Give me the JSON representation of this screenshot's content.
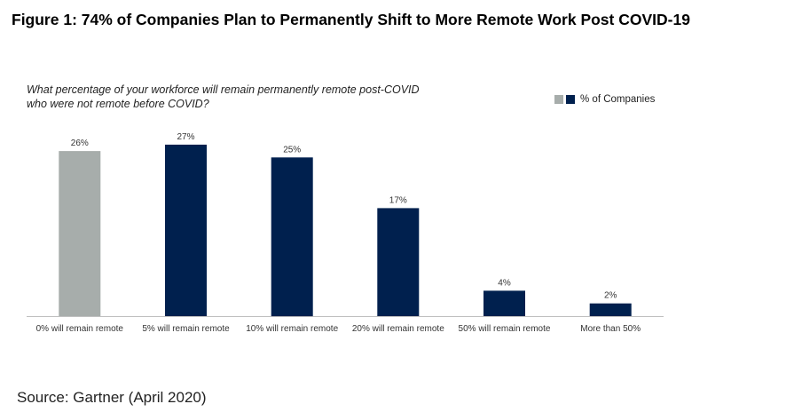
{
  "figure_title": "Figure 1: 74% of Companies Plan to Permanently Shift to More Remote Work Post COVID-19",
  "source": "Source: Gartner (April 2020)",
  "colors": {
    "highlight": "#a7adab",
    "primary": "#00204e",
    "axis": "#bfbfbf"
  },
  "chart_data": {
    "type": "bar",
    "title": "What percentage of your workforce will remain permanently remote post-COVID who were not remote before COVID?",
    "title_lines": [
      "What percentage of your workforce will remain permanently remote post-COVID",
      "who were not remote before COVID?"
    ],
    "legend": {
      "label": "% of Companies",
      "position": "top-right"
    },
    "categories": [
      "0% will remain remote",
      "5% will remain remote",
      "10% will remain remote",
      "20% will remain remote",
      "50% will remain remote",
      "More than 50%"
    ],
    "series": [
      {
        "name": "% of Companies",
        "values": [
          26,
          27,
          25,
          17,
          4,
          2
        ]
      }
    ],
    "data_labels": [
      "26%",
      "27%",
      "25%",
      "17%",
      "4%",
      "2%"
    ],
    "bar_colors": [
      "#a7adab",
      "#00204e",
      "#00204e",
      "#00204e",
      "#00204e",
      "#00204e"
    ],
    "ylim": [
      0,
      30
    ],
    "grid": false
  }
}
